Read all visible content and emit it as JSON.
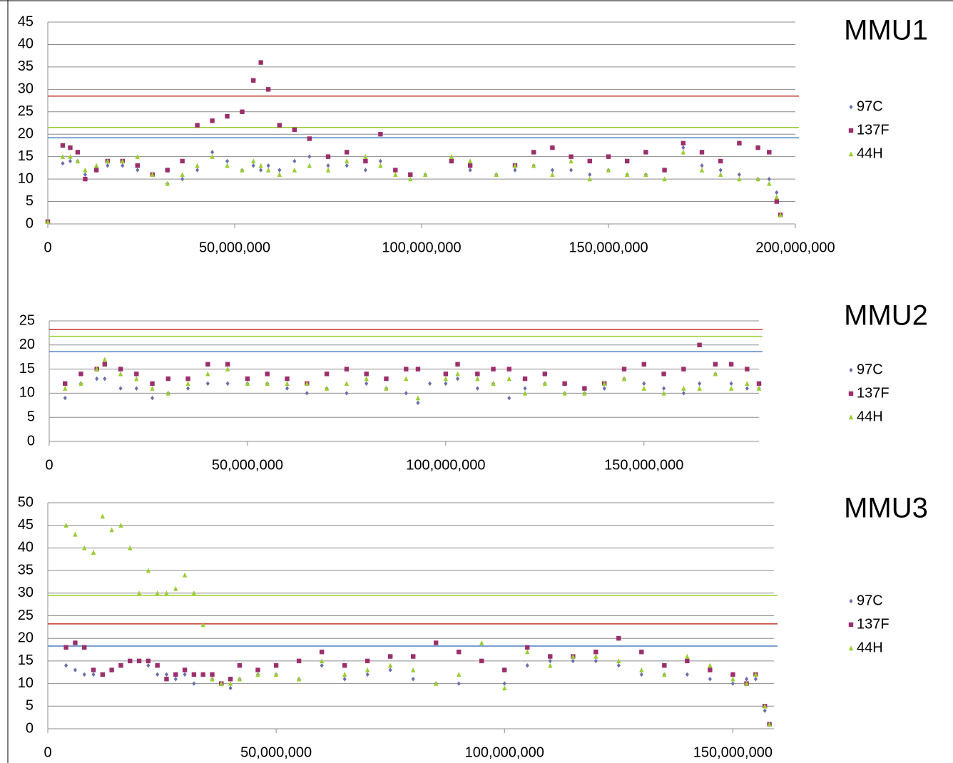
{
  "chart_data": [
    {
      "type": "scatter",
      "title": "MMU1",
      "x": [
        0,
        4000000,
        6000000,
        8000000,
        10000000,
        13000000,
        16000000,
        20000000,
        24000000,
        28000000,
        32000000,
        36000000,
        40000000,
        44000000,
        48000000,
        52000000,
        55000000,
        57000000,
        59000000,
        62000000,
        66000000,
        70000000,
        75000000,
        80000000,
        85000000,
        89000000,
        93000000,
        97000000,
        101000000,
        108000000,
        113000000,
        120000000,
        125000000,
        130000000,
        135000000,
        140000000,
        145000000,
        150000000,
        155000000,
        160000000,
        165000000,
        170000000,
        175000000,
        180000000,
        185000000,
        190000000,
        193000000,
        195000000,
        196000000
      ],
      "series": [
        {
          "name": "97C",
          "color": "#6b6fa8",
          "marker": "diamond",
          "values": [
            0.5,
            13.5,
            14,
            14,
            11,
            12,
            13,
            13,
            12,
            11,
            9,
            10,
            12,
            16,
            14,
            12,
            13,
            12,
            13,
            12,
            14,
            15,
            13,
            13,
            12,
            14,
            12,
            11,
            11,
            14,
            12,
            11,
            12,
            13,
            12,
            12,
            11,
            12,
            11,
            11,
            12,
            17,
            13,
            12,
            11,
            10,
            10,
            7,
            2
          ]
        },
        {
          "name": "137F",
          "color": "#9b2f6b",
          "marker": "square",
          "values": [
            0.5,
            17.5,
            17,
            16,
            10,
            12,
            14,
            14,
            13,
            11,
            12,
            14,
            22,
            23,
            24,
            25,
            32,
            36,
            30,
            22,
            21,
            19,
            15,
            16,
            14,
            20,
            12,
            11,
            null,
            14,
            13,
            null,
            13,
            16,
            17,
            15,
            14,
            15,
            14,
            16,
            12,
            18,
            16,
            14,
            18,
            17,
            16,
            5,
            2
          ]
        },
        {
          "name": "44H",
          "color": "#9acd32",
          "marker": "triangle",
          "values": [
            0.5,
            15,
            15,
            14,
            12,
            13,
            14,
            14,
            15,
            11,
            9,
            11,
            13,
            15,
            13,
            12,
            14,
            13,
            12,
            11,
            12,
            13,
            12,
            14,
            15,
            13,
            11,
            10,
            11,
            15,
            14,
            11,
            13,
            13,
            11,
            14,
            10,
            12,
            11,
            11,
            10,
            16,
            12,
            11,
            10,
            10,
            9,
            6,
            2
          ]
        }
      ],
      "reference_lines": [
        {
          "value": 28.5,
          "color": "#c0392b"
        },
        {
          "value": 21.5,
          "color": "#9acd32"
        },
        {
          "value": 19.2,
          "color": "#4f81bd"
        }
      ],
      "xlim": [
        0,
        200000000
      ],
      "xticks": [
        0,
        {
          "value": 50000000,
          "label": "50,000,000"
        },
        {
          "value": 100000000,
          "label": "100,000,000"
        },
        {
          "value": 150000000,
          "label": "150,000,000"
        },
        {
          "value": 200000000,
          "label": "200,000,000"
        }
      ],
      "ylim": [
        0,
        45
      ],
      "yticks": [
        0,
        5,
        10,
        15,
        20,
        25,
        30,
        35,
        40,
        45
      ],
      "grid": true
    },
    {
      "type": "scatter",
      "title": "MMU2",
      "x": [
        4000000,
        8000000,
        12000000,
        14000000,
        18000000,
        22000000,
        26000000,
        30000000,
        35000000,
        40000000,
        45000000,
        50000000,
        55000000,
        60000000,
        65000000,
        70000000,
        75000000,
        80000000,
        85000000,
        90000000,
        93000000,
        96000000,
        100000000,
        103000000,
        108000000,
        112000000,
        116000000,
        120000000,
        125000000,
        130000000,
        135000000,
        140000000,
        145000000,
        150000000,
        155000000,
        160000000,
        164000000,
        168000000,
        172000000,
        176000000,
        179000000
      ],
      "series": [
        {
          "name": "97C",
          "color": "#6b6fa8",
          "marker": "diamond",
          "values": [
            9,
            12,
            13,
            13,
            11,
            11,
            9,
            10,
            11,
            12,
            12,
            12,
            12,
            11,
            10,
            11,
            10,
            12,
            11,
            10,
            8,
            12,
            12,
            13,
            11,
            12,
            9,
            11,
            12,
            10,
            10,
            11,
            13,
            12,
            11,
            10,
            12,
            14,
            12,
            11,
            11
          ]
        },
        {
          "name": "137F",
          "color": "#9b2f6b",
          "marker": "square",
          "values": [
            12,
            14,
            15,
            16,
            15,
            14,
            12,
            13,
            13,
            16,
            16,
            13,
            14,
            13,
            12,
            14,
            15,
            14,
            13,
            15,
            15,
            null,
            14,
            16,
            14,
            15,
            15,
            13,
            14,
            12,
            11,
            12,
            15,
            16,
            14,
            15,
            20,
            16,
            16,
            15,
            12
          ]
        },
        {
          "name": "44H",
          "color": "#9acd32",
          "marker": "triangle",
          "values": [
            11,
            12,
            15,
            17,
            14,
            13,
            11,
            10,
            12,
            14,
            15,
            12,
            12,
            12,
            12,
            11,
            12,
            13,
            11,
            13,
            9,
            null,
            13,
            14,
            13,
            12,
            13,
            10,
            12,
            10,
            10,
            12,
            13,
            11,
            10,
            11,
            11,
            14,
            11,
            12,
            11
          ]
        }
      ],
      "reference_lines": [
        {
          "value": 23.2,
          "color": "#c0392b"
        },
        {
          "value": 21.8,
          "color": "#9acd32"
        },
        {
          "value": 18.6,
          "color": "#4f81bd"
        }
      ],
      "xlim": [
        0,
        179000000
      ],
      "xticks": [
        0,
        {
          "value": 50000000,
          "label": "50,000,000"
        },
        {
          "value": 100000000,
          "label": "100,000,000"
        },
        {
          "value": 150000000,
          "label": "150,000,000"
        }
      ],
      "ylim": [
        0,
        25
      ],
      "yticks": [
        0,
        5,
        10,
        15,
        20,
        25
      ],
      "grid": true
    },
    {
      "type": "scatter",
      "title": "MMU3",
      "x": [
        4000000,
        6000000,
        8000000,
        10000000,
        12000000,
        14000000,
        16000000,
        18000000,
        20000000,
        22000000,
        24000000,
        26000000,
        28000000,
        30000000,
        32000000,
        34000000,
        36000000,
        38000000,
        40000000,
        42000000,
        46000000,
        50000000,
        55000000,
        60000000,
        65000000,
        70000000,
        75000000,
        80000000,
        85000000,
        90000000,
        95000000,
        100000000,
        105000000,
        110000000,
        115000000,
        120000000,
        125000000,
        130000000,
        135000000,
        140000000,
        145000000,
        150000000,
        153000000,
        155000000,
        157000000,
        158000000
      ],
      "series": [
        {
          "name": "97C",
          "color": "#6b6fa8",
          "marker": "diamond",
          "values": [
            14,
            13,
            12,
            12,
            12,
            13,
            14,
            15,
            15,
            14,
            12,
            12,
            11,
            12,
            10,
            12,
            11,
            10,
            9,
            11,
            12,
            12,
            11,
            14,
            11,
            12,
            13,
            11,
            10,
            10,
            15,
            10,
            14,
            15,
            15,
            15,
            14,
            12,
            12,
            12,
            11,
            10,
            11,
            11,
            4,
            1
          ]
        },
        {
          "name": "137F",
          "color": "#9b2f6b",
          "marker": "square",
          "values": [
            18,
            19,
            18,
            13,
            12,
            13,
            14,
            15,
            15,
            15,
            14,
            11,
            12,
            13,
            12,
            12,
            12,
            10,
            11,
            14,
            13,
            14,
            15,
            17,
            14,
            15,
            16,
            16,
            19,
            17,
            15,
            13,
            18,
            16,
            16,
            17,
            20,
            17,
            14,
            15,
            13,
            12,
            10,
            12,
            5,
            1
          ]
        },
        {
          "name": "44H",
          "color": "#9acd32",
          "marker": "triangle",
          "values": [
            45,
            43,
            40,
            39,
            47,
            44,
            45,
            40,
            30,
            35,
            30,
            30,
            31,
            34,
            30,
            23,
            11,
            10,
            10,
            11,
            12,
            12,
            11,
            15,
            12,
            13,
            14,
            13,
            10,
            12,
            19,
            9,
            17,
            14,
            16,
            16,
            15,
            13,
            12,
            16,
            14,
            11,
            10,
            12,
            5,
            1
          ]
        }
      ],
      "reference_lines": [
        {
          "value": 29.5,
          "color": "#9acd32"
        },
        {
          "value": 23.2,
          "color": "#c0392b"
        },
        {
          "value": 18.3,
          "color": "#4f81bd"
        }
      ],
      "xlim": [
        0,
        159000000
      ],
      "xticks": [
        0,
        {
          "value": 50000000,
          "label": "50,000,000"
        },
        {
          "value": 100000000,
          "label": "100,000,000"
        },
        {
          "value": 150000000,
          "label": "150,000,000"
        }
      ],
      "ylim": [
        0,
        50
      ],
      "yticks": [
        0,
        5,
        10,
        15,
        20,
        25,
        30,
        35,
        40,
        45,
        50
      ],
      "grid": true
    }
  ]
}
